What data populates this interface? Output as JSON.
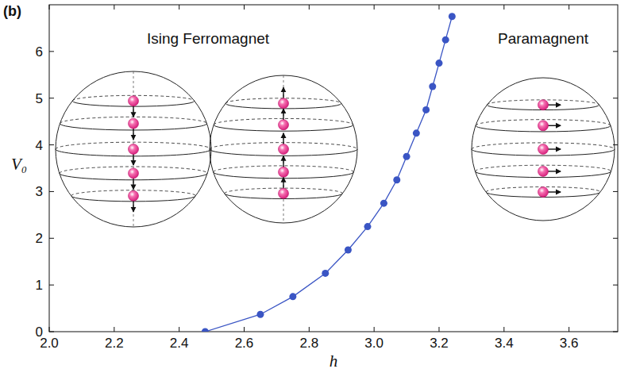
{
  "chart_data": {
    "type": "line",
    "panel_label": "(b)",
    "x_label": "h",
    "y_label": "V₀",
    "annotations": [
      "Ising Ferromagnet",
      "Paramagnent"
    ],
    "x": [
      2.48,
      2.65,
      2.75,
      2.85,
      2.92,
      2.98,
      3.03,
      3.07,
      3.1,
      3.13,
      3.16,
      3.18,
      3.2,
      3.22,
      3.24
    ],
    "values": [
      0,
      0.37,
      0.75,
      1.25,
      1.75,
      2.25,
      2.75,
      3.25,
      3.75,
      4.25,
      4.75,
      5.25,
      5.75,
      6.25,
      6.75
    ],
    "color": "#3a55c4",
    "marker": "circle",
    "line_style": "solid",
    "xlim": [
      2.0,
      3.75
    ],
    "ylim": [
      0,
      7
    ],
    "xticks": [
      {
        "value": 2.0,
        "label": "2.0"
      },
      {
        "value": 2.2,
        "label": "2.2"
      },
      {
        "value": 2.4,
        "label": "2.4"
      },
      {
        "value": 2.6,
        "label": "2.6"
      },
      {
        "value": 2.8,
        "label": "2.8"
      },
      {
        "value": 3.0,
        "label": "3.0"
      },
      {
        "value": 3.2,
        "label": "3.2"
      },
      {
        "value": 3.4,
        "label": "3.4"
      },
      {
        "value": 3.6,
        "label": "3.6"
      }
    ],
    "yticks": [
      0,
      1,
      2,
      3,
      4,
      5,
      6
    ],
    "grid": false
  }
}
